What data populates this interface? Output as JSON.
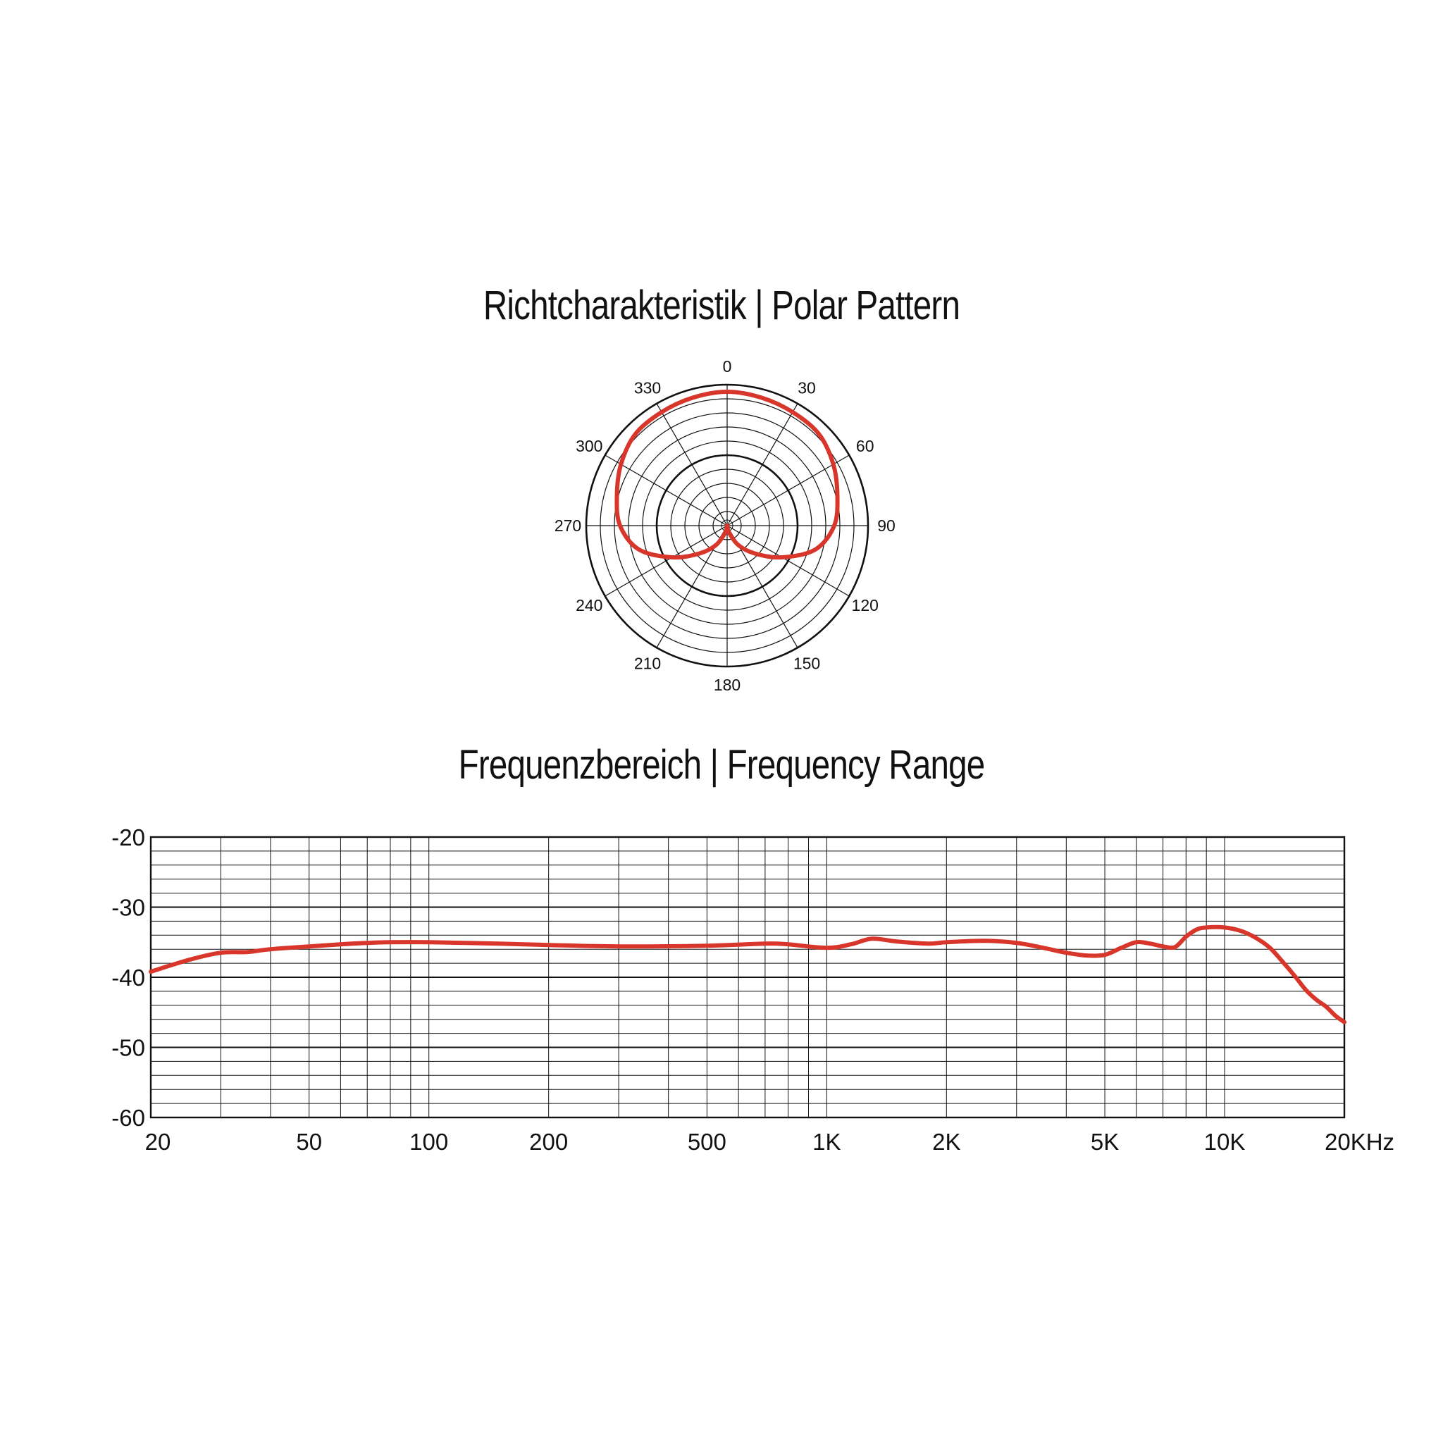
{
  "chart_data": [
    {
      "type": "polar",
      "title": "Richtcharakteristik | Polar Pattern",
      "angle_labels": [
        "0",
        "30",
        "60",
        "90",
        "120",
        "150",
        "180",
        "210",
        "240",
        "270",
        "300",
        "330"
      ],
      "angles_deg": [
        0,
        30,
        60,
        90,
        120,
        150,
        180,
        210,
        240,
        270,
        300,
        330
      ],
      "r_range": [
        0,
        1
      ],
      "pattern_color": "#d9362b",
      "series": [
        {
          "theta_deg": [
            0,
            15,
            30,
            45,
            60,
            75,
            90,
            105,
            120,
            135,
            150,
            165,
            180,
            195,
            210,
            225,
            240,
            255,
            270,
            285,
            300,
            315,
            330,
            345,
            360
          ],
          "r": [
            0.95,
            0.94,
            0.93,
            0.92,
            0.87,
            0.81,
            0.76,
            0.65,
            0.45,
            0.28,
            0.16,
            0.05,
            0.0,
            0.05,
            0.16,
            0.28,
            0.45,
            0.65,
            0.76,
            0.81,
            0.87,
            0.92,
            0.93,
            0.94,
            0.95
          ]
        }
      ]
    },
    {
      "type": "line",
      "title": "Frequenzbereich | Frequency Range",
      "xscale": "log",
      "xlim": [
        20,
        20000
      ],
      "ylim": [
        -60,
        -20
      ],
      "x_tick_values": [
        20,
        50,
        100,
        200,
        500,
        1000,
        2000,
        5000,
        10000,
        20000
      ],
      "x_tick_labels": [
        "20",
        "50",
        "100",
        "200",
        "500",
        "1K",
        "2K",
        "5K",
        "10K",
        "20KHz"
      ],
      "y_tick_values": [
        -20,
        -30,
        -40,
        -50,
        -60
      ],
      "y_tick_labels": [
        "-20",
        "-30",
        "-40",
        "-50",
        "-60"
      ],
      "line_color": "#d9362b",
      "series": [
        {
          "x": [
            20,
            25,
            30,
            35,
            40,
            50,
            60,
            70,
            80,
            100,
            150,
            200,
            300,
            500,
            700,
            800,
            1000,
            1150,
            1300,
            1500,
            1800,
            2000,
            2500,
            3000,
            3500,
            4000,
            4500,
            5000,
            5500,
            6000,
            6500,
            7000,
            7500,
            8000,
            8500,
            9000,
            10000,
            11000,
            12000,
            13000,
            14000,
            15000,
            16000,
            17000,
            18000,
            19000,
            20000
          ],
          "y": [
            -39.2,
            -37.5,
            -36.5,
            -36.4,
            -36.0,
            -35.6,
            -35.3,
            -35.1,
            -35.0,
            -35.0,
            -35.2,
            -35.4,
            -35.6,
            -35.5,
            -35.2,
            -35.3,
            -35.8,
            -35.3,
            -34.5,
            -34.9,
            -35.2,
            -35.0,
            -34.8,
            -35.1,
            -35.8,
            -36.5,
            -36.9,
            -36.8,
            -35.8,
            -35.0,
            -35.2,
            -35.6,
            -35.7,
            -34.2,
            -33.2,
            -32.9,
            -32.9,
            -33.4,
            -34.4,
            -35.8,
            -37.8,
            -39.8,
            -41.8,
            -43.2,
            -44.2,
            -45.5,
            -46.4
          ]
        }
      ]
    }
  ]
}
